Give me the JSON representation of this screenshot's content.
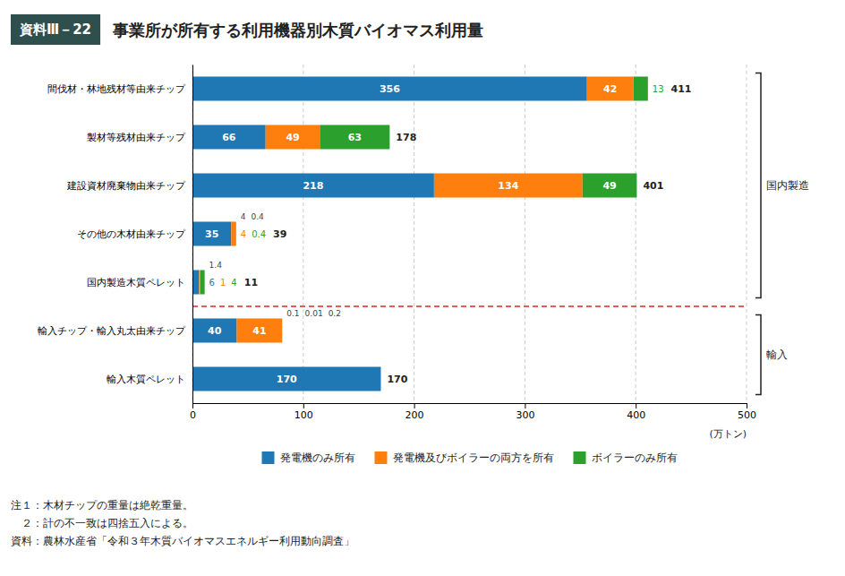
{
  "chart_data": {
    "type": "bar",
    "orientation": "horizontal",
    "stacked": true,
    "figure_label": "資料Ⅲ－22",
    "title": "事業所が所有する利用機器別木質バイオマス利用量",
    "categories": [
      "輸入木質ペレット",
      "輸入チップ・輸入丸太由来チップ",
      "国内製造木質ペレット",
      "その他の木材由来チップ",
      "建設資材廃棄物由来チップ",
      "製材等残材由来チップ",
      "間伐材・林地残材等由来チップ"
    ],
    "series": [
      {
        "name": "発電機のみ所有",
        "values": [
          170,
          40,
          6,
          35,
          218,
          66,
          356
        ]
      },
      {
        "name": "発電機及びボイラーの両方を所有",
        "values": [
          0,
          41,
          1,
          4,
          134,
          49,
          42
        ],
        "value_labels": [
          null,
          "41",
          "1",
          "4",
          "134",
          "49",
          "42"
        ]
      },
      {
        "name": "ボイラーのみ所有",
        "values": [
          0,
          0,
          4,
          0.4,
          49,
          63,
          13
        ],
        "value_labels": [
          null,
          null,
          "4",
          "0.4",
          "49",
          "63",
          "13"
        ]
      }
    ],
    "totals": [
      170,
      null,
      11,
      39,
      401,
      178,
      411
    ],
    "data_labels": true,
    "xlim": [
      0,
      500
    ],
    "xticks": [
      0,
      100,
      200,
      300,
      400,
      500
    ],
    "x_label": "(万トン)",
    "grid": true,
    "legend": "bottom",
    "groups": [
      {
        "name": "国内製造",
        "categories": [
          "国内製造木質ペレット",
          "その他の木材由来チップ",
          "建設資材廃棄物由来チップ",
          "製材等残材由来チップ",
          "間伐材・林地残材等由来チップ"
        ]
      },
      {
        "name": "輸入",
        "categories": [
          "輸入木質ペレット",
          "輸入チップ・輸入丸太由来チップ"
        ]
      }
    ],
    "annotations": [
      {
        "text": "0.1",
        "category": "輸入チップ・輸入丸太由来チップ"
      },
      {
        "text": "0.01",
        "category": "輸入チップ・輸入丸太由来チップ"
      },
      {
        "text": "0.2",
        "category": "輸入チップ・輸入丸太由来チップ"
      },
      {
        "text": "4",
        "category": "その他の木材由来チップ"
      },
      {
        "text": "0.4",
        "category": "その他の木材由来チップ"
      },
      {
        "text": "1.4",
        "category": "国内製造木質ペレット"
      }
    ],
    "notes": [
      "注１：木材チップの重量は絶乾重量。",
      "　２：計の不一致は四捨五入による。",
      "資料：農林水産省「令和３年木質バイオマスエネルギー利用動向調査」"
    ]
  }
}
